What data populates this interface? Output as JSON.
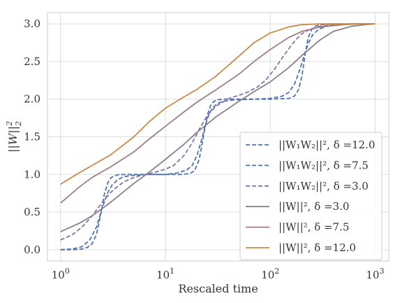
{
  "chart_data": {
    "type": "line",
    "title": "",
    "xlabel": "Rescaled time",
    "ylabel": "$\\|W\\|_2^2$",
    "ylabel_parts": {
      "base": "||W||",
      "sup": "2",
      "sub": "2"
    },
    "xscale": "log",
    "xlim": [
      0.75,
      1350
    ],
    "ylim": [
      -0.15,
      3.15
    ],
    "grid": true,
    "legend_position": "lower-right",
    "x_ticks": [
      {
        "value": 1,
        "base": "10",
        "exp": "0"
      },
      {
        "value": 10,
        "base": "10",
        "exp": "1"
      },
      {
        "value": 100,
        "base": "10",
        "exp": "2"
      },
      {
        "value": 1000,
        "base": "10",
        "exp": "3"
      }
    ],
    "y_ticks": [
      {
        "value": 0.0,
        "label": "0.0"
      },
      {
        "value": 0.5,
        "label": "0.5"
      },
      {
        "value": 1.0,
        "label": "1.0"
      },
      {
        "value": 1.5,
        "label": "1.5"
      },
      {
        "value": 2.0,
        "label": "2.0"
      },
      {
        "value": 2.5,
        "label": "2.5"
      },
      {
        "value": 3.0,
        "label": "3.0"
      }
    ],
    "series": [
      {
        "name": "$\\|W_1W_2\\|_2^2$, $\\delta$ =12.0",
        "legend_text": "||W₁W₂||², δ =12.0",
        "color": "#4c72b0",
        "dash": "dashed",
        "x": [
          1,
          1.2,
          1.4,
          1.6,
          1.8,
          2,
          2.2,
          2.4,
          2.6,
          2.8,
          3,
          3.2,
          3.5,
          4,
          6,
          10,
          14,
          17,
          19,
          21,
          23,
          25,
          27,
          29,
          31,
          35,
          50,
          100,
          150,
          170,
          185,
          200,
          215,
          230,
          250,
          270,
          300,
          400,
          700,
          1000
        ],
        "y": [
          0,
          0,
          0.003,
          0.01,
          0.03,
          0.08,
          0.2,
          0.45,
          0.72,
          0.88,
          0.95,
          0.98,
          0.995,
          1.0,
          1.0,
          1.0,
          1.0,
          1.01,
          1.05,
          1.2,
          1.5,
          1.78,
          1.92,
          1.97,
          1.99,
          2.0,
          2.0,
          2.0,
          2.01,
          2.04,
          2.12,
          2.3,
          2.6,
          2.82,
          2.93,
          2.97,
          2.99,
          3.0,
          3.0,
          3.0
        ]
      },
      {
        "name": "$\\|W_1W_2\\|_2^2$, $\\delta$ =7.5",
        "legend_text": "||W₁W₂||², δ =7.5",
        "color": "#4c72b0",
        "dash": "dashed",
        "x": [
          1,
          1.3,
          1.6,
          1.9,
          2.2,
          2.5,
          2.8,
          3.1,
          3.5,
          4,
          5,
          7,
          10,
          13,
          16,
          18,
          20,
          22,
          24,
          26,
          28,
          31,
          35,
          45,
          70,
          100,
          130,
          150,
          170,
          190,
          210,
          230,
          255,
          290,
          350,
          450,
          600,
          1000
        ],
        "y": [
          0.001,
          0.01,
          0.04,
          0.13,
          0.3,
          0.56,
          0.75,
          0.86,
          0.93,
          0.97,
          0.99,
          1.0,
          1.0,
          1.02,
          1.06,
          1.12,
          1.25,
          1.45,
          1.65,
          1.8,
          1.88,
          1.94,
          1.97,
          1.99,
          2.0,
          2.01,
          2.04,
          2.09,
          2.2,
          2.38,
          2.58,
          2.74,
          2.86,
          2.93,
          2.97,
          2.99,
          3.0,
          3.0
        ]
      },
      {
        "name": "$\\|W_1W_2\\|_2^2$, $\\delta$ =3.0",
        "legend_text": "||W₁W₂||², δ =3.0",
        "color": "#8172b2",
        "dash": "dashed",
        "x": [
          1,
          1.3,
          1.6,
          2,
          2.5,
          3,
          3.5,
          4,
          5,
          6,
          8,
          10,
          12,
          15,
          18,
          21,
          25,
          30,
          36,
          42,
          50,
          60,
          75,
          90,
          110,
          130,
          150,
          170,
          200,
          240,
          300,
          400,
          600,
          1000
        ],
        "y": [
          0.13,
          0.2,
          0.3,
          0.45,
          0.63,
          0.76,
          0.84,
          0.9,
          0.96,
          0.99,
          1.03,
          1.07,
          1.12,
          1.25,
          1.42,
          1.6,
          1.78,
          1.9,
          1.97,
          2.02,
          2.05,
          2.09,
          2.16,
          2.25,
          2.4,
          2.55,
          2.67,
          2.77,
          2.87,
          2.93,
          2.97,
          2.99,
          3.0,
          3.0
        ]
      },
      {
        "name": "$\\|W\\|_2^2$, $\\delta$ =3.0",
        "legend_text": "||W||², δ =3.0",
        "color": "#8c7d88",
        "dash": "solid",
        "x": [
          1,
          1.5,
          2,
          3,
          5,
          7,
          10,
          15,
          20,
          30,
          50,
          70,
          100,
          150,
          200,
          300,
          400,
          600,
          800,
          1000
        ],
        "y": [
          0.24,
          0.35,
          0.45,
          0.63,
          0.88,
          1.03,
          1.2,
          1.4,
          1.56,
          1.76,
          1.97,
          2.1,
          2.23,
          2.42,
          2.58,
          2.79,
          2.9,
          2.97,
          2.99,
          3.0
        ]
      },
      {
        "name": "$\\|W\\|_2^2$, $\\delta$ =7.5",
        "legend_text": "||W||², δ =7.5",
        "color": "#a07d80",
        "dash": "solid",
        "x": [
          1,
          1.5,
          2,
          3,
          5,
          7,
          10,
          15,
          20,
          30,
          50,
          70,
          100,
          150,
          200,
          300,
          500,
          700,
          1000
        ],
        "y": [
          0.62,
          0.83,
          0.96,
          1.1,
          1.3,
          1.47,
          1.64,
          1.83,
          1.96,
          2.12,
          2.33,
          2.5,
          2.66,
          2.82,
          2.9,
          2.96,
          2.99,
          3.0,
          3.0
        ]
      },
      {
        "name": "$\\|W\\|_2^2$, $\\delta$ =12.0",
        "legend_text": "||W||², δ =12.0",
        "color": "#c98a45",
        "dash": "solid",
        "x": [
          1,
          1.5,
          2,
          3,
          5,
          7,
          10,
          15,
          20,
          30,
          50,
          70,
          100,
          150,
          200,
          300,
          500,
          1000
        ],
        "y": [
          0.87,
          1.02,
          1.12,
          1.26,
          1.5,
          1.7,
          1.88,
          2.03,
          2.13,
          2.3,
          2.57,
          2.75,
          2.88,
          2.96,
          2.99,
          3.0,
          3.0,
          3.0
        ]
      }
    ]
  }
}
